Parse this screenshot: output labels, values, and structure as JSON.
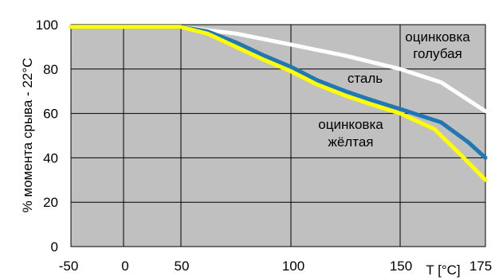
{
  "chart_data": {
    "type": "line",
    "title": "",
    "xlabel": "T [°C]",
    "ylabel": "% момента срыва - 22°C",
    "xlim": [
      -50,
      175
    ],
    "ylim": [
      0,
      100
    ],
    "x_ticks": [
      "-50",
      "0",
      "50",
      "100",
      "150",
      "175"
    ],
    "y_ticks": [
      "0",
      "20",
      "40",
      "60",
      "80",
      "100"
    ],
    "grid": true,
    "background_color": "#c0c0c0",
    "series": [
      {
        "name": "оцинковка голубая",
        "color": "#ffffff",
        "points": [
          [
            -50,
            99
          ],
          [
            50,
            99
          ],
          [
            75,
            96
          ],
          [
            100,
            91
          ],
          [
            125,
            86
          ],
          [
            150,
            80
          ],
          [
            162,
            74
          ],
          [
            175,
            61
          ]
        ]
      },
      {
        "name": "сталь",
        "color": "#1f77b4",
        "points": [
          [
            -50,
            99
          ],
          [
            50,
            99
          ],
          [
            62,
            97
          ],
          [
            75,
            92
          ],
          [
            88,
            86
          ],
          [
            100,
            81
          ],
          [
            112,
            75
          ],
          [
            125,
            70
          ],
          [
            137,
            66
          ],
          [
            150,
            62
          ],
          [
            162,
            56
          ],
          [
            170,
            47
          ],
          [
            175,
            40
          ]
        ]
      },
      {
        "name": "оцинковка жёлтая",
        "color": "#ffff00",
        "points": [
          [
            -50,
            99
          ],
          [
            50,
            99
          ],
          [
            62,
            96
          ],
          [
            75,
            90
          ],
          [
            88,
            84
          ],
          [
            100,
            79
          ],
          [
            112,
            73
          ],
          [
            125,
            68
          ],
          [
            137,
            64
          ],
          [
            150,
            60
          ],
          [
            160,
            53
          ],
          [
            168,
            41
          ],
          [
            175,
            30
          ]
        ]
      }
    ],
    "annotations": [
      {
        "series": "оцинковка голубая",
        "lines": [
          "оцинковка",
          "голубая"
        ]
      },
      {
        "series": "сталь",
        "lines": [
          "сталь"
        ]
      },
      {
        "series": "оцинковка жёлтая",
        "lines": [
          "оцинковка",
          "жёлтая"
        ]
      }
    ]
  }
}
